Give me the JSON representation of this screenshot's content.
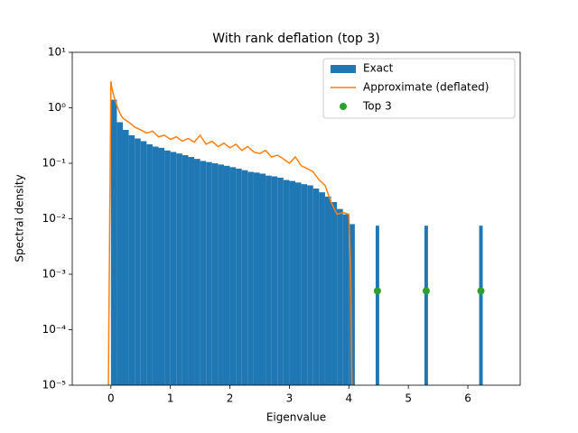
{
  "chart_data": {
    "type": "histogram",
    "title": "With rank deflation (top 3)",
    "xlabel": "Eigenvalue",
    "ylabel": "Spectral density",
    "yscale": "log",
    "legend": "upper right",
    "xlim": [
      -0.65,
      6.88
    ],
    "xticks": [
      0,
      1,
      2,
      3,
      4,
      5,
      6
    ],
    "ylim": [
      1e-05,
      10
    ],
    "yticks": [
      {
        "value": 1e-05,
        "label": "10⁻⁵"
      },
      {
        "value": 0.0001,
        "label": "10⁻⁴"
      },
      {
        "value": 0.001,
        "label": "10⁻³"
      },
      {
        "value": 0.01,
        "label": "10⁻²"
      },
      {
        "value": 0.1,
        "label": "10⁻¹"
      },
      {
        "value": 1,
        "label": "10⁰"
      },
      {
        "value": 10,
        "label": "10¹"
      }
    ],
    "bins": [
      0,
      0.1,
      0.2,
      0.3,
      0.4,
      0.5,
      0.6,
      0.7,
      0.8,
      0.9,
      1.0,
      1.1,
      1.2,
      1.3,
      1.4,
      1.5,
      1.6,
      1.7,
      1.8,
      1.9,
      2.0,
      2.1,
      2.2,
      2.3,
      2.4,
      2.5,
      2.6,
      2.7,
      2.8,
      2.9,
      3.0,
      3.1,
      3.2,
      3.3,
      3.4,
      3.5,
      3.6,
      3.7,
      3.8,
      3.9,
      4.0,
      4.1,
      4.45,
      4.51,
      5.27,
      5.33,
      6.19,
      6.25
    ],
    "series": [
      {
        "name": "Exact",
        "type": "histogram",
        "color": "#1f77b4",
        "values": [
          1.4,
          0.55,
          0.4,
          0.32,
          0.28,
          0.25,
          0.22,
          0.2,
          0.19,
          0.17,
          0.16,
          0.15,
          0.14,
          0.13,
          0.12,
          0.11,
          0.105,
          0.1,
          0.095,
          0.09,
          0.085,
          0.08,
          0.075,
          0.07,
          0.068,
          0.065,
          0.06,
          0.058,
          0.055,
          0.05,
          0.048,
          0.045,
          0.042,
          0.04,
          0.035,
          0.03,
          0.025,
          0.02,
          0.015,
          0.012,
          0.008,
          0,
          0.0075,
          0,
          0.0075,
          0,
          0.0075
        ]
      },
      {
        "name": "Approximate (deflated)",
        "type": "line",
        "color": "#ff7f0e",
        "x": [
          -0.05,
          -0.02,
          0,
          0.02,
          0.05,
          0.1,
          0.15,
          0.2,
          0.3,
          0.4,
          0.5,
          0.6,
          0.7,
          0.8,
          0.9,
          1.0,
          1.1,
          1.2,
          1.3,
          1.4,
          1.5,
          1.6,
          1.7,
          1.8,
          1.9,
          2.0,
          2.1,
          2.2,
          2.3,
          2.4,
          2.5,
          2.6,
          2.7,
          2.8,
          2.9,
          3.0,
          3.1,
          3.2,
          3.3,
          3.4,
          3.5,
          3.6,
          3.7,
          3.8,
          3.9,
          4.0,
          4.03,
          4.06
        ],
        "values": [
          1e-06,
          0.01,
          3.0,
          2.2,
          1.6,
          1.1,
          0.8,
          0.65,
          0.55,
          0.45,
          0.4,
          0.35,
          0.38,
          0.3,
          0.32,
          0.27,
          0.3,
          0.25,
          0.28,
          0.24,
          0.32,
          0.22,
          0.25,
          0.2,
          0.23,
          0.19,
          0.22,
          0.17,
          0.2,
          0.16,
          0.15,
          0.17,
          0.13,
          0.14,
          0.12,
          0.1,
          0.13,
          0.09,
          0.08,
          0.07,
          0.05,
          0.04,
          0.02,
          0.012,
          0.013,
          0.012,
          0.001,
          1e-06
        ]
      },
      {
        "name": "Top 3",
        "type": "scatter",
        "color": "#2ca02c",
        "x": [
          4.48,
          5.3,
          6.22
        ],
        "values": [
          0.0005,
          0.0005,
          0.0005
        ]
      }
    ]
  }
}
